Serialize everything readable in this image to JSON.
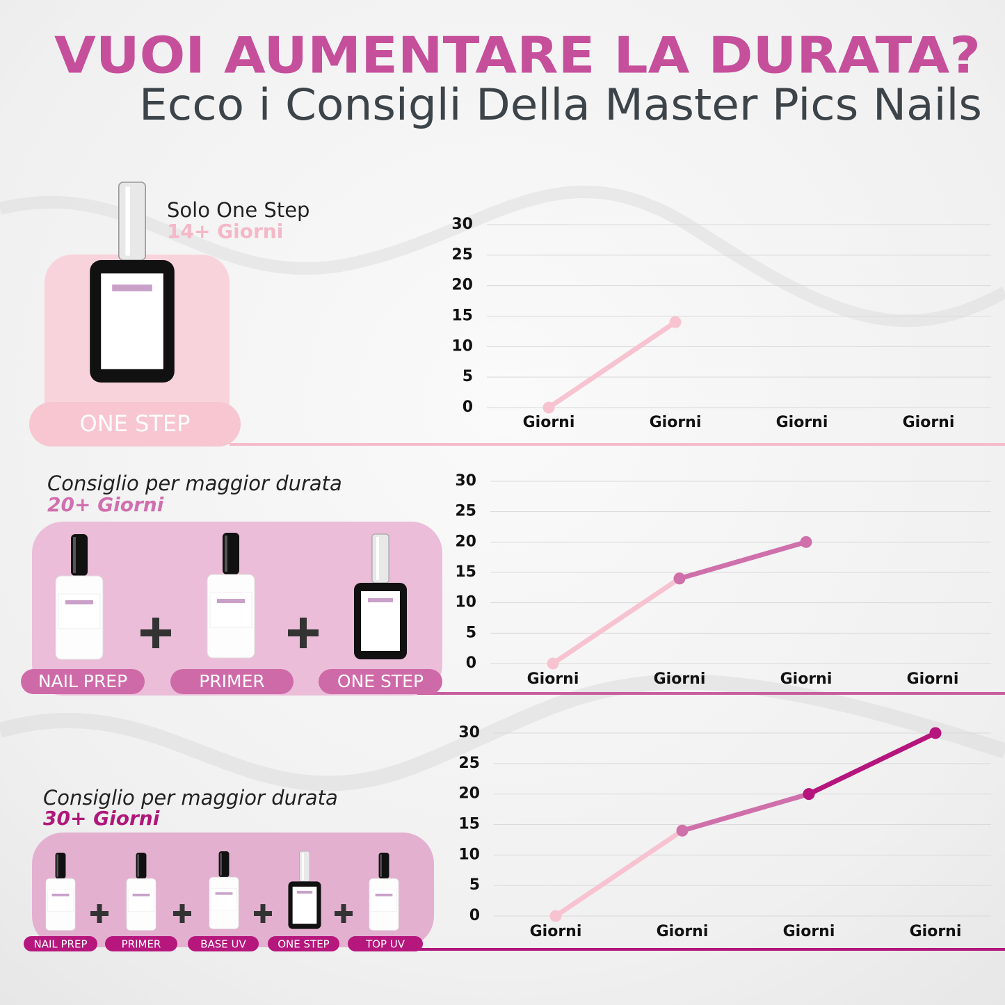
{
  "header": {
    "title": "VUOI AUMENTARE LA DURATA?",
    "subtitle": "Ecco i Consigli Della Master Pics Nails"
  },
  "sections": [
    {
      "heading": "Solo One Step",
      "duration": "14+ Giorni",
      "products": [
        "ONE STEP"
      ]
    },
    {
      "heading": "Consiglio per maggior durata",
      "duration": "20+ Giorni",
      "products": [
        "NAIL PREP",
        "PRIMER",
        "ONE STEP"
      ]
    },
    {
      "heading": "Consiglio per maggior durata",
      "duration": "30+ Giorni",
      "products": [
        "NAIL PREP",
        "PRIMER",
        "BASE UV",
        "ONE STEP",
        "TOP UV"
      ]
    }
  ],
  "chart_data": [
    {
      "type": "line",
      "categories": [
        "Giorni",
        "Giorni",
        "Giorni",
        "Giorni"
      ],
      "ylim": [
        0,
        30
      ],
      "yticks": [
        0,
        5,
        10,
        15,
        20,
        25,
        30
      ],
      "grid": true,
      "series": [
        {
          "color": "#f7c3d0",
          "values": [
            0,
            14,
            null,
            null
          ]
        }
      ]
    },
    {
      "type": "line",
      "categories": [
        "Giorni",
        "Giorni",
        "Giorni",
        "Giorni"
      ],
      "ylim": [
        0,
        30
      ],
      "yticks": [
        0,
        5,
        10,
        15,
        20,
        25,
        30
      ],
      "grid": true,
      "series": [
        {
          "color": "#f7c3d0",
          "values": [
            0,
            14,
            null,
            null
          ]
        },
        {
          "color": "#cf70ab",
          "values": [
            null,
            14,
            20,
            null
          ]
        }
      ]
    },
    {
      "type": "line",
      "categories": [
        "Giorni",
        "Giorni",
        "Giorni",
        "Giorni"
      ],
      "ylim": [
        0,
        30
      ],
      "yticks": [
        0,
        5,
        10,
        15,
        20,
        25,
        30
      ],
      "grid": true,
      "series": [
        {
          "color": "#f7c3d0",
          "values": [
            0,
            14,
            null,
            null
          ]
        },
        {
          "color": "#cf70ab",
          "values": [
            null,
            14,
            20,
            null
          ]
        },
        {
          "color": "#b5157c",
          "values": [
            null,
            null,
            20,
            30
          ]
        }
      ]
    }
  ]
}
